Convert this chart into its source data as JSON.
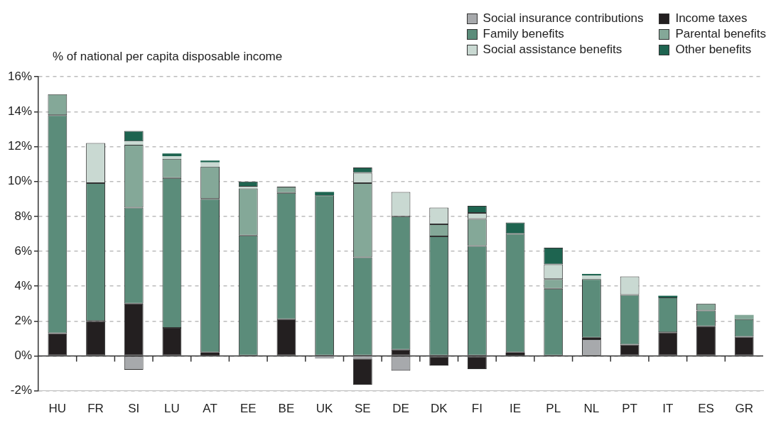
{
  "chart_data": {
    "type": "bar",
    "stacked": true,
    "ylabel": "% of national per capita disposable income",
    "categories": [
      "HU",
      "FR",
      "SI",
      "LU",
      "AT",
      "EE",
      "BE",
      "UK",
      "SE",
      "DE",
      "DK",
      "FI",
      "IE",
      "PL",
      "NL",
      "PT",
      "IT",
      "ES",
      "GR"
    ],
    "series": [
      {
        "name": "Social insurance contributions",
        "color": "#a7a9ac",
        "values": [
          null,
          null,
          -0.8,
          null,
          null,
          null,
          null,
          -0.15,
          -0.15,
          -0.85,
          null,
          null,
          null,
          null,
          0.95,
          null,
          null,
          null,
          null
        ]
      },
      {
        "name": "Income taxes",
        "color": "#231f20",
        "values": [
          1.3,
          2.0,
          3.0,
          1.6,
          0.2,
          null,
          2.1,
          null,
          -1.5,
          0.35,
          -0.55,
          -0.75,
          0.2,
          null,
          0.1,
          0.65,
          1.35,
          1.7,
          1.1
        ]
      },
      {
        "name": "Family benefits",
        "color": "#5b8c7a",
        "values": [
          12.5,
          7.9,
          5.5,
          8.6,
          8.8,
          6.9,
          7.25,
          9.2,
          5.65,
          7.65,
          6.85,
          6.3,
          6.8,
          3.85,
          3.35,
          2.85,
          2.0,
          0.9,
          1.0
        ]
      },
      {
        "name": "Parental benefits",
        "color": "#84a898",
        "values": [
          1.2,
          null,
          3.6,
          1.1,
          1.85,
          2.7,
          0.35,
          null,
          4.25,
          null,
          0.7,
          1.55,
          null,
          0.55,
          null,
          null,
          null,
          0.4,
          0.25
        ]
      },
      {
        "name": "Social assistance benefits",
        "color": "#c9d9d2",
        "values": [
          null,
          2.3,
          0.2,
          0.15,
          0.25,
          0.1,
          null,
          null,
          0.6,
          1.4,
          0.95,
          0.35,
          null,
          0.85,
          0.2,
          1.05,
          null,
          null,
          null
        ]
      },
      {
        "name": "Other benefits",
        "color": "#1e6450",
        "values": [
          null,
          null,
          0.6,
          0.15,
          0.1,
          0.3,
          null,
          0.2,
          0.3,
          null,
          null,
          0.4,
          0.65,
          0.95,
          0.1,
          null,
          0.1,
          null,
          null
        ]
      }
    ],
    "ylim": [
      -2,
      16
    ],
    "yticks": [
      {
        "value": -2,
        "label": "-2%"
      },
      {
        "value": 0,
        "label": "0%"
      },
      {
        "value": 2,
        "label": "2%"
      },
      {
        "value": 4,
        "label": "4%"
      },
      {
        "value": 6,
        "label": "6%"
      },
      {
        "value": 8,
        "label": "8%"
      },
      {
        "value": 10,
        "label": "10%"
      },
      {
        "value": 12,
        "label": "12%"
      },
      {
        "value": 14,
        "label": "14%"
      },
      {
        "value": 16,
        "label": "16%"
      }
    ],
    "ref_lines": [
      {
        "axis": "y",
        "value": 0,
        "color": "#333333",
        "line_style": "solid"
      }
    ],
    "grid": "y",
    "legend": "top right"
  }
}
